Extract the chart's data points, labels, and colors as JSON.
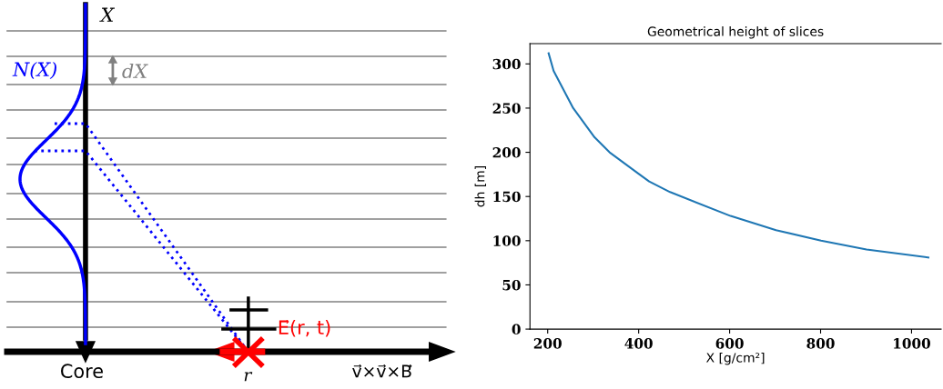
{
  "chart_data": [
    {
      "type": "other",
      "annotations": [
        "X",
        "N(X)",
        "dX",
        "E⃗(r, t)",
        "Core",
        "r",
        "v⃗×v⃗×B⃗"
      ]
    },
    {
      "type": "line",
      "title": "Geometrical height of slices",
      "xlabel": "X [g/cm²]",
      "ylabel": "dh [m]",
      "x": [
        202,
        213,
        256,
        303,
        336,
        399,
        423,
        469,
        602,
        702,
        801,
        901,
        1037
      ],
      "series": [
        {
          "color": "#1f77b4",
          "values": [
            312,
            292,
            250,
            217,
            200,
            176,
            167,
            155,
            128,
            112,
            100,
            90,
            81
          ]
        }
      ],
      "xlim": [
        161,
        1065
      ],
      "ylim": [
        0,
        323
      ],
      "xticks": [
        200,
        400,
        600,
        800,
        1000
      ],
      "yticks": [
        0,
        50,
        100,
        150,
        200,
        250,
        300
      ],
      "grid": false
    }
  ]
}
